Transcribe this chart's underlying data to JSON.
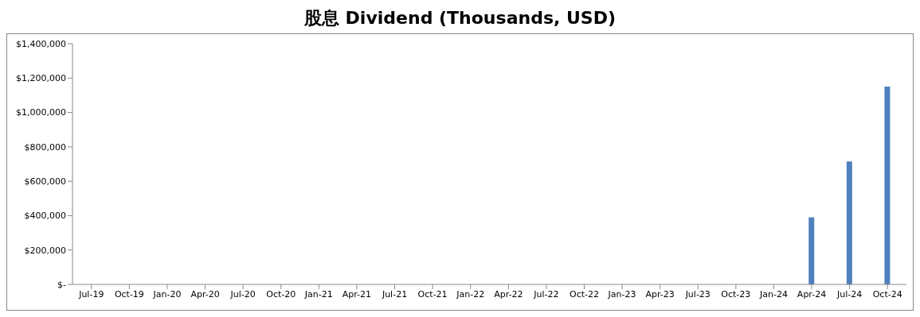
{
  "chart_data": {
    "type": "bar",
    "title": "股息 Dividend (Thousands, USD)",
    "categories": [
      "Jul-19",
      "Oct-19",
      "Jan-20",
      "Apr-20",
      "Jul-20",
      "Oct-20",
      "Jan-21",
      "Apr-21",
      "Jul-21",
      "Oct-21",
      "Jan-22",
      "Apr-22",
      "Jul-22",
      "Oct-22",
      "Jan-23",
      "Apr-23",
      "Jul-23",
      "Oct-23",
      "Jan-24",
      "Apr-24",
      "Jul-24",
      "Oct-24"
    ],
    "values": [
      0,
      0,
      0,
      0,
      0,
      0,
      0,
      0,
      0,
      0,
      0,
      0,
      0,
      0,
      0,
      0,
      0,
      0,
      0,
      390000,
      715000,
      1150000
    ],
    "color": "#4f81bd",
    "ylim": [
      0,
      1400000
    ],
    "yticks": [
      {
        "value": 0,
        "label": "$-"
      },
      {
        "value": 200000,
        "label": "$200,000"
      },
      {
        "value": 400000,
        "label": "$400,000"
      },
      {
        "value": 600000,
        "label": "$600,000"
      },
      {
        "value": 800000,
        "label": "$800,000"
      },
      {
        "value": 1000000,
        "label": "$1,000,000"
      },
      {
        "value": 1200000,
        "label": "$1,200,000"
      },
      {
        "value": 1400000,
        "label": "$1,400,000"
      }
    ],
    "grid": false,
    "legend": false
  }
}
